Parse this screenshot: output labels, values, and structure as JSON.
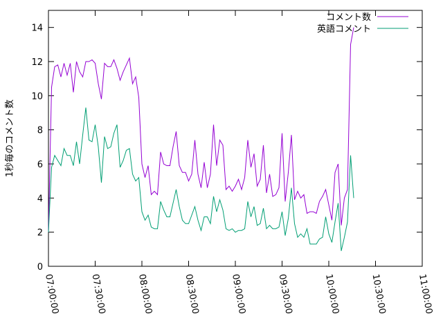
{
  "chart_data": {
    "type": "line",
    "title": "",
    "xlabel": "",
    "ylabel": "1秒毎のコメント数",
    "ylim": [
      0,
      15
    ],
    "yticks": [
      0,
      2,
      4,
      6,
      8,
      10,
      12,
      14
    ],
    "xlim": [
      "07:00:00",
      "11:00:00"
    ],
    "xticks": [
      "07:00:00",
      "07:30:00",
      "08:00:00",
      "08:30:00",
      "09:00:00",
      "09:30:00",
      "10:00:00",
      "10:30:00",
      "11:00:00"
    ],
    "x_step_seconds": 120,
    "x_start": "07:00:00",
    "grid": false,
    "legend_position": "top-right",
    "series": [
      {
        "name": "コメント数",
        "color": "#9400d3",
        "values": [
          2.0,
          10.5,
          11.7,
          11.8,
          11.1,
          11.9,
          11.2,
          11.9,
          10.2,
          12.0,
          11.4,
          11.1,
          12.0,
          12.0,
          12.1,
          11.9,
          10.7,
          9.8,
          11.9,
          11.7,
          11.7,
          12.1,
          11.6,
          10.9,
          11.4,
          11.8,
          12.2,
          10.7,
          11.1,
          9.9,
          6.0,
          5.2,
          5.9,
          4.2,
          4.4,
          4.2,
          6.7,
          6.0,
          5.9,
          5.9,
          7.0,
          7.9,
          5.9,
          5.5,
          5.5,
          5.0,
          5.4,
          7.4,
          5.4,
          4.6,
          6.1,
          4.6,
          5.4,
          8.3,
          5.9,
          7.4,
          7.1,
          4.5,
          4.7,
          4.4,
          4.7,
          5.1,
          4.5,
          5.2,
          7.4,
          5.8,
          6.6,
          4.7,
          5.1,
          7.1,
          4.3,
          5.4,
          4.1,
          4.2,
          4.6,
          7.8,
          3.8,
          5.5,
          7.7,
          3.9,
          4.4,
          4.0,
          4.2,
          3.1,
          3.2,
          3.2,
          3.1,
          3.8,
          4.1,
          4.5,
          3.6,
          2.7,
          5.5,
          6.0,
          2.4,
          4.0,
          4.5,
          13.0,
          14.0
        ]
      },
      {
        "name": "英語コメント",
        "color": "#009e73",
        "values": [
          2.0,
          5.8,
          6.5,
          6.2,
          5.9,
          6.9,
          6.5,
          6.5,
          5.9,
          7.3,
          6.0,
          7.7,
          9.3,
          7.4,
          7.3,
          8.3,
          7.0,
          4.9,
          7.6,
          6.9,
          7.0,
          7.8,
          8.3,
          5.8,
          6.2,
          6.8,
          6.9,
          5.4,
          5.0,
          5.2,
          3.2,
          2.7,
          3.0,
          2.3,
          2.2,
          2.2,
          3.8,
          3.3,
          2.9,
          2.9,
          3.7,
          4.5,
          3.5,
          2.7,
          2.5,
          2.5,
          3.0,
          3.5,
          2.7,
          2.1,
          2.9,
          2.9,
          2.5,
          4.1,
          3.2,
          3.9,
          3.3,
          2.2,
          2.1,
          2.2,
          2.0,
          2.1,
          2.1,
          2.2,
          3.8,
          2.9,
          3.5,
          2.4,
          2.5,
          3.4,
          2.2,
          2.4,
          2.2,
          2.2,
          2.3,
          3.2,
          1.8,
          2.8,
          4.6,
          2.5,
          1.7,
          1.9,
          1.7,
          2.2,
          1.3,
          1.3,
          1.3,
          1.6,
          1.7,
          2.9,
          1.9,
          1.4,
          2.6,
          3.7,
          0.9,
          1.7,
          2.6,
          6.5,
          4.0
        ]
      }
    ]
  }
}
